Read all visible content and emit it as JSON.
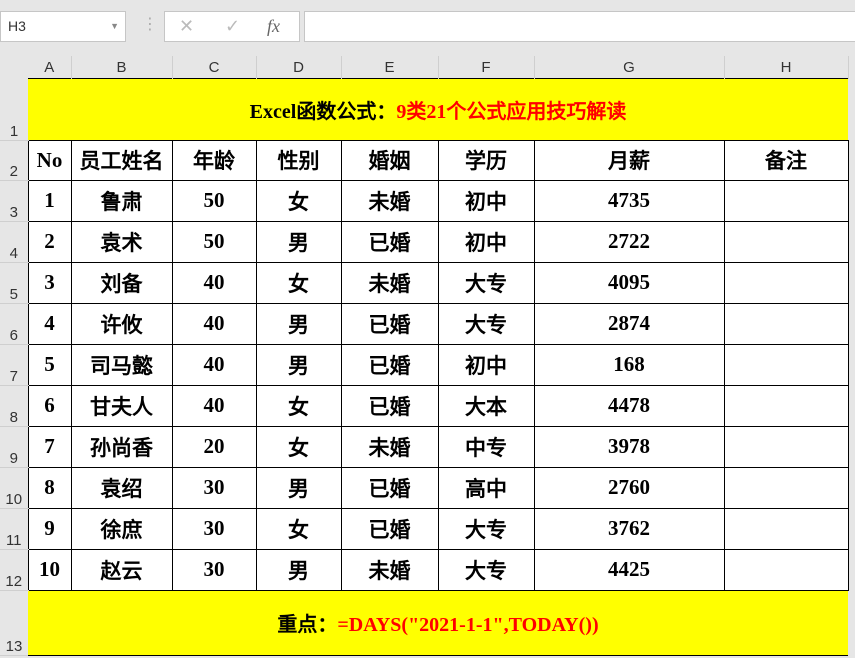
{
  "namebox": {
    "value": "H3"
  },
  "formula_bar": {
    "cancel_icon": "✕",
    "enter_icon": "✓",
    "fx_label": "fx",
    "value": ""
  },
  "columns": [
    "A",
    "B",
    "C",
    "D",
    "E",
    "F",
    "G",
    "H"
  ],
  "rows": [
    "1",
    "2",
    "3",
    "4",
    "5",
    "6",
    "7",
    "8",
    "9",
    "10",
    "11",
    "12",
    "13"
  ],
  "title": {
    "black": "Excel函数公式：",
    "red": "9类21个公式应用技巧解读"
  },
  "headers": [
    "No",
    "员工姓名",
    "年龄",
    "性别",
    "婚姻",
    "学历",
    "月薪",
    "备注"
  ],
  "data": [
    [
      "1",
      "鲁肃",
      "50",
      "女",
      "未婚",
      "初中",
      "4735",
      ""
    ],
    [
      "2",
      "袁术",
      "50",
      "男",
      "已婚",
      "初中",
      "2722",
      ""
    ],
    [
      "3",
      "刘备",
      "40",
      "女",
      "未婚",
      "大专",
      "4095",
      ""
    ],
    [
      "4",
      "许攸",
      "40",
      "男",
      "已婚",
      "大专",
      "2874",
      ""
    ],
    [
      "5",
      "司马懿",
      "40",
      "男",
      "已婚",
      "初中",
      "168",
      ""
    ],
    [
      "6",
      "甘夫人",
      "40",
      "女",
      "已婚",
      "大本",
      "4478",
      ""
    ],
    [
      "7",
      "孙尚香",
      "20",
      "女",
      "未婚",
      "中专",
      "3978",
      ""
    ],
    [
      "8",
      "袁绍",
      "30",
      "男",
      "已婚",
      "高中",
      "2760",
      ""
    ],
    [
      "9",
      "徐庶",
      "30",
      "女",
      "已婚",
      "大专",
      "3762",
      ""
    ],
    [
      "10",
      "赵云",
      "30",
      "男",
      "未婚",
      "大专",
      "4425",
      ""
    ]
  ],
  "footer": {
    "black": "重点：",
    "red": "=DAYS(\"2021-1-1\",TODAY())"
  },
  "colors": {
    "highlight": "#ffff00",
    "accent_red": "#ff0000"
  }
}
